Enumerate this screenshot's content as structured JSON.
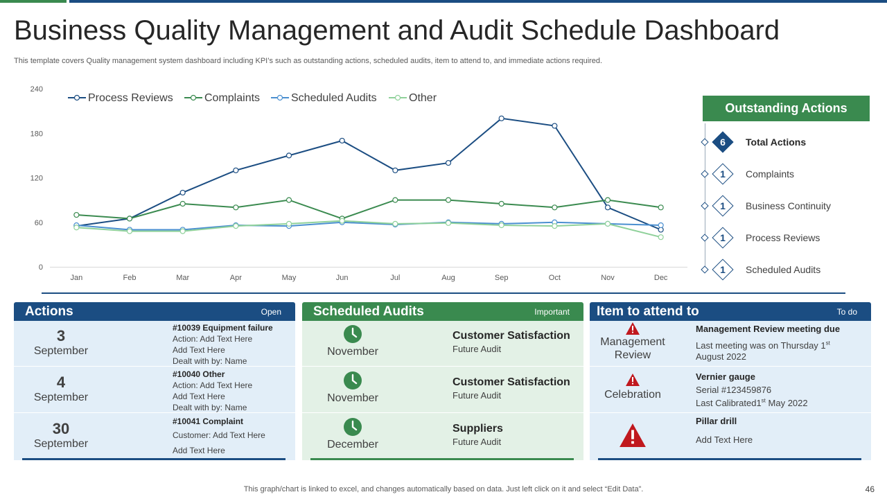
{
  "header": {
    "title": "Business Quality Management and Audit Schedule Dashboard",
    "subtitle": "This template covers Quality management system dashboard including KPI’s such as outstanding actions, scheduled audits, item to attend to, and immediate actions required."
  },
  "chart_data": {
    "type": "line",
    "categories": [
      "Jan",
      "Feb",
      "Mar",
      "Apr",
      "May",
      "Jun",
      "Jul",
      "Aug",
      "Sep",
      "Oct",
      "Nov",
      "Dec"
    ],
    "ylim": [
      0,
      240
    ],
    "yticks": [
      "240",
      "180",
      "120",
      "60",
      "0"
    ],
    "legend_position": "top-left",
    "series": [
      {
        "name": "Process Reviews",
        "color": "#1b4d82",
        "values": [
          55,
          65,
          100,
          130,
          150,
          170,
          130,
          140,
          200,
          190,
          80,
          50
        ]
      },
      {
        "name": "Complaints",
        "color": "#3a8a4f",
        "values": [
          70,
          65,
          85,
          80,
          90,
          65,
          90,
          90,
          85,
          80,
          90,
          80
        ]
      },
      {
        "name": "Scheduled Audits",
        "color": "#4a8fd0",
        "values": [
          56,
          50,
          50,
          56,
          55,
          60,
          57,
          60,
          58,
          60,
          58,
          56
        ]
      },
      {
        "name": "Other",
        "color": "#8fd19a",
        "values": [
          53,
          48,
          48,
          55,
          58,
          62,
          58,
          59,
          56,
          55,
          58,
          40
        ]
      }
    ]
  },
  "outstanding": {
    "title": "Outstanding Actions",
    "items": [
      {
        "count": "6",
        "label": "Total Actions"
      },
      {
        "count": "1",
        "label": "Complaints"
      },
      {
        "count": "1",
        "label": "Business Continuity"
      },
      {
        "count": "1",
        "label": "Process Reviews"
      },
      {
        "count": "1",
        "label": "Scheduled Audits"
      }
    ]
  },
  "actions": {
    "title": "Actions",
    "tag": "Open",
    "rows": [
      {
        "day": "3",
        "month": "September",
        "id": "#10039 Equipment failure",
        "lines": [
          "Action: Add Text Here",
          "Add Text Here",
          "Dealt with by: Name"
        ]
      },
      {
        "day": "4",
        "month": "September",
        "id": "#10040 Other",
        "lines": [
          "Action: Add Text Here",
          "Add Text Here",
          "Dealt with by: Name"
        ]
      },
      {
        "day": "30",
        "month": "September",
        "id": "#10041 Complaint",
        "lines": [
          "Customer:  Add Text Here",
          "Add Text Here"
        ]
      }
    ]
  },
  "audits": {
    "title": "Scheduled Audits",
    "tag": "Important",
    "rows": [
      {
        "month": "November",
        "title": "Customer Satisfaction",
        "sub": "Future Audit"
      },
      {
        "month": "November",
        "title": "Customer Satisfaction",
        "sub": "Future Audit"
      },
      {
        "month": "December",
        "title": "Suppliers",
        "sub": "Future Audit"
      }
    ]
  },
  "items": {
    "title": "Item to attend to",
    "tag": "To do",
    "rows": [
      {
        "label": "Management Review",
        "title": "Management Review meeting due",
        "line1_pre": "Last meeting was on Thursday  1",
        "line1_sup": "st",
        "line2": "August 2022"
      },
      {
        "label": "Celebration",
        "title": "Vernier gauge",
        "line1": "Serial #123459876",
        "line2_pre": "Last Calibrated1",
        "line2_sup": "st",
        "line2_post": " May 2022"
      },
      {
        "title": "Pillar drill",
        "line1": "Add Text Here"
      }
    ]
  },
  "footer": {
    "note": "This graph/chart is linked to excel,  and changes automatically based on data. Just left click on it and select “Edit Data”.",
    "page": "46"
  }
}
